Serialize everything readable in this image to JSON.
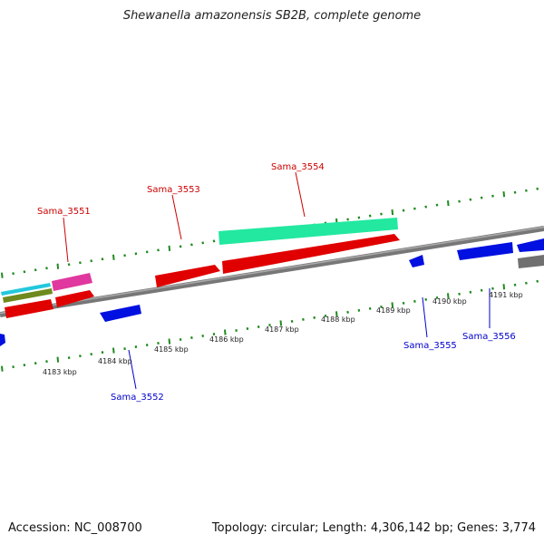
{
  "title": "Shewanella amazonensis SB2B, complete genome",
  "footer": {
    "accession": "Accession: NC_008700",
    "topology": "Topology: circular; Length: 4,306,142 bp; Genes: 3,774"
  },
  "colors": {
    "backbone": "#808080",
    "tick": "#1f8a1f",
    "forward_label": "#cc0000",
    "reverse_label": "#0000cc"
  },
  "scale_labels": [
    "4183 kbp",
    "4184 kbp",
    "4185 kbp",
    "4186 kbp",
    "4187 kbp",
    "4188 kbp",
    "4189 kbp",
    "4190 kbp",
    "4191 kbp"
  ],
  "gene_labels": [
    {
      "name": "Sama_3551",
      "strand": "forward"
    },
    {
      "name": "Sama_3553",
      "strand": "forward"
    },
    {
      "name": "Sama_3554",
      "strand": "forward"
    },
    {
      "name": "Sama_3552",
      "strand": "reverse"
    },
    {
      "name": "Sama_3555",
      "strand": "reverse"
    },
    {
      "name": "Sama_3556",
      "strand": "reverse"
    }
  ]
}
